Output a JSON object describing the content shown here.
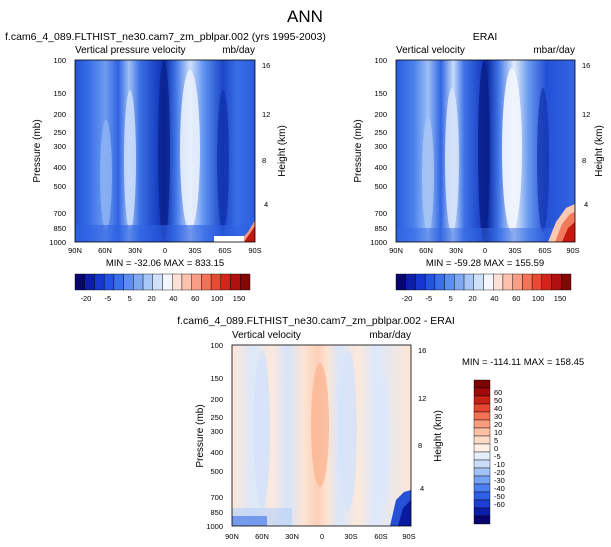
{
  "page_title": "ANN",
  "colors": {
    "model_panel": [
      "#0a2a9a",
      "#1746c8",
      "#2b5fe0",
      "#3f78ea",
      "#5a93f0",
      "#86b2f4",
      "#b4d0f7",
      "#dde9fb",
      "#ffffff"
    ],
    "model_scale": [
      "#08066e",
      "#0d1fa8",
      "#1537d0",
      "#2453e3",
      "#3a6fea",
      "#5b8ef0",
      "#7fa9f3",
      "#a8c6f6",
      "#cfe0f9",
      "#f3f6fd",
      "#fde0d6",
      "#fcc2ae",
      "#f99e84",
      "#f47358",
      "#e94a33",
      "#d3251c",
      "#b0100f",
      "#830707"
    ],
    "diff_scale": [
      "#08066e",
      "#0d1fa8",
      "#1c3ed6",
      "#2d5fe6",
      "#4b80ee",
      "#76a2f3",
      "#a3c2f6",
      "#cbdcf9",
      "#e6eefb",
      "#fff0e6",
      "#fddac6",
      "#fcc0a4",
      "#f99b7d",
      "#f37053",
      "#e64530",
      "#ca1f17",
      "#a0090b",
      "#7a0404"
    ]
  },
  "chart_data": [
    {
      "type": "heatmap",
      "title_left": "f.cam6_4_089.FLTHIST_ne30.cam7_zm_pblpar.002 (yrs 1995-2003)",
      "subtitle_left": "Vertical pressure velocity",
      "subtitle_right": "mb/day",
      "ylabel": "Pressure (mb)",
      "y2label": "Height (km)",
      "x_ticks": [
        "90N",
        "60N",
        "30N",
        "0",
        "30S",
        "60S",
        "90S"
      ],
      "y_ticks": [
        "100",
        "150",
        "200",
        "250",
        "300",
        "400",
        "500",
        "700",
        "850",
        "1000"
      ],
      "y2_ticks": [
        "16",
        "12",
        "8",
        "4"
      ],
      "stats": "MIN = -32.06  MAX = 833.15",
      "colorbar_labels": [
        "-20",
        "-5",
        "5",
        "20",
        "40",
        "60",
        "100",
        "150"
      ]
    },
    {
      "type": "heatmap",
      "title_left": "",
      "title_center": "ERAI",
      "subtitle_left": "Vertical velocity",
      "subtitle_right": "mbar/day",
      "ylabel": "Pressure (mb)",
      "y2label": "Height (km)",
      "x_ticks": [
        "90N",
        "60N",
        "30N",
        "0",
        "30S",
        "60S",
        "90S"
      ],
      "y_ticks": [
        "100",
        "150",
        "200",
        "250",
        "300",
        "400",
        "500",
        "700",
        "850",
        "1000"
      ],
      "y2_ticks": [
        "16",
        "12",
        "8",
        "4"
      ],
      "stats": "MIN = -59.28  MAX = 155.59",
      "colorbar_labels": [
        "-20",
        "-5",
        "5",
        "20",
        "40",
        "60",
        "100",
        "150"
      ]
    },
    {
      "type": "heatmap",
      "title_center": "f.cam6_4_089.FLTHIST_ne30.cam7_zm_pblpar.002 - ERAI",
      "subtitle_left": "Vertical velocity",
      "subtitle_right": "mbar/day",
      "ylabel": "Pressure (mb)",
      "y2label": "Height (km)",
      "x_ticks": [
        "90N",
        "60N",
        "30N",
        "0",
        "30S",
        "60S",
        "90S"
      ],
      "y_ticks": [
        "100",
        "150",
        "200",
        "250",
        "300",
        "400",
        "500",
        "700",
        "850",
        "1000"
      ],
      "y2_ticks": [
        "16",
        "12",
        "8",
        "4"
      ],
      "stats": "MIN = -114.11  MAX = 158.45",
      "colorbar_labels": [
        "60",
        "50",
        "40",
        "30",
        "20",
        "10",
        "5",
        "0",
        "-5",
        "-10",
        "-20",
        "-30",
        "-40",
        "-50",
        "-60"
      ]
    }
  ]
}
